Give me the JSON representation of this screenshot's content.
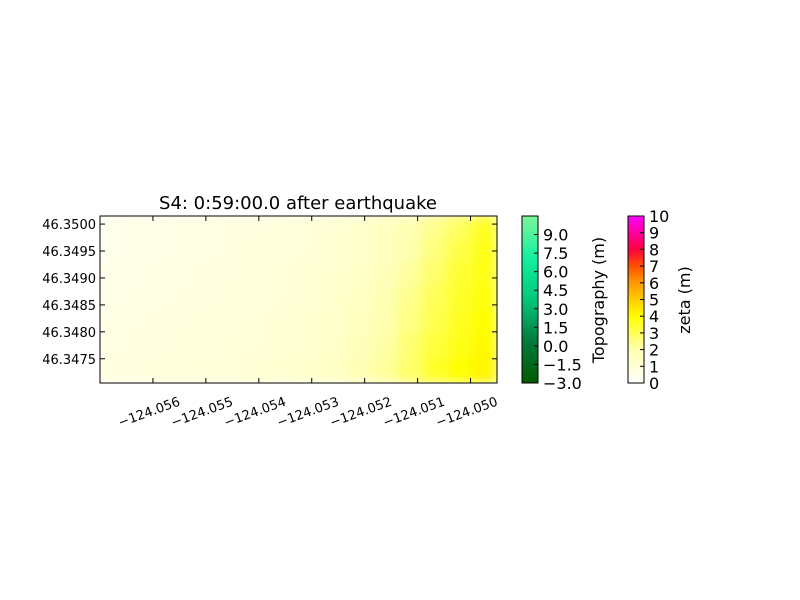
{
  "chart_data": {
    "type": "heatmap",
    "title": "S4: 0:59:00.0 after earthquake",
    "xlim": [
      -124.057,
      -124.0495
    ],
    "ylim": [
      46.34705,
      46.35015
    ],
    "x_ticks": [
      {
        "value": -124.056,
        "label": "−124.056"
      },
      {
        "value": -124.055,
        "label": "−124.055"
      },
      {
        "value": -124.054,
        "label": "−124.054"
      },
      {
        "value": -124.053,
        "label": "−124.053"
      },
      {
        "value": -124.052,
        "label": "−124.052"
      },
      {
        "value": -124.051,
        "label": "−124.051"
      },
      {
        "value": -124.05,
        "label": "−124.050"
      }
    ],
    "y_ticks": [
      {
        "value": 46.35,
        "label": "46.3500"
      },
      {
        "value": 46.3495,
        "label": "46.3495"
      },
      {
        "value": 46.349,
        "label": "46.3490"
      },
      {
        "value": 46.3485,
        "label": "46.3485"
      },
      {
        "value": 46.348,
        "label": "46.3480"
      },
      {
        "value": 46.3475,
        "label": "46.3475"
      }
    ],
    "zeta_grid": {
      "description_free": true,
      "rows": [
        [
          0.5,
          0.6,
          0.6,
          0.7,
          0.7,
          0.8,
          0.8,
          0.9,
          1.0,
          1.1,
          1.3,
          1.6,
          1.9,
          2.4,
          2.9,
          3.6
        ],
        [
          0.5,
          0.6,
          0.6,
          0.7,
          0.7,
          0.8,
          0.9,
          0.9,
          1.0,
          1.1,
          1.3,
          1.6,
          2.0,
          2.6,
          3.2,
          3.8
        ],
        [
          0.6,
          0.6,
          0.7,
          0.7,
          0.8,
          0.8,
          0.9,
          1.0,
          1.1,
          1.2,
          1.4,
          1.7,
          2.2,
          2.8,
          3.4,
          3.8
        ],
        [
          0.6,
          0.7,
          0.7,
          0.8,
          0.8,
          0.9,
          0.9,
          1.0,
          1.1,
          1.3,
          1.5,
          1.9,
          2.4,
          3.0,
          3.5,
          3.9
        ],
        [
          0.7,
          0.7,
          0.8,
          0.8,
          0.9,
          0.9,
          1.0,
          1.1,
          1.2,
          1.3,
          1.6,
          2.0,
          2.5,
          3.1,
          3.6,
          4.0
        ],
        [
          0.7,
          0.8,
          0.8,
          0.9,
          0.9,
          1.0,
          1.0,
          1.1,
          1.2,
          1.4,
          1.7,
          2.1,
          2.7,
          3.3,
          3.8,
          4.1
        ],
        [
          0.8,
          0.8,
          0.9,
          0.9,
          1.0,
          1.0,
          1.1,
          1.2,
          1.3,
          1.5,
          1.8,
          2.2,
          2.8,
          3.5,
          4.0,
          4.2
        ]
      ]
    },
    "colorbars": [
      {
        "label": "Topography (m)",
        "min": -3.0,
        "max": 10.5,
        "gradient": [
          "#005a00",
          "#007a3d",
          "#00c87a",
          "#14f0a0",
          "#7ef599"
        ],
        "ticks": [
          {
            "value": 9.0,
            "label": "9.0"
          },
          {
            "value": 7.5,
            "label": "7.5"
          },
          {
            "value": 6.0,
            "label": "6.0"
          },
          {
            "value": 4.5,
            "label": "4.5"
          },
          {
            "value": 3.0,
            "label": "3.0"
          },
          {
            "value": 1.5,
            "label": "1.5"
          },
          {
            "value": 0.0,
            "label": "0.0"
          },
          {
            "value": -1.5,
            "label": "−1.5"
          },
          {
            "value": -3.0,
            "label": "−3.0"
          }
        ]
      },
      {
        "label": "zeta (m)",
        "min": 0,
        "max": 10,
        "gradient_stops": [
          {
            "value": 0,
            "color": "#ffffff"
          },
          {
            "value": 2,
            "color": "#ffffb0"
          },
          {
            "value": 4,
            "color": "#ffff00"
          },
          {
            "value": 6,
            "color": "#ff9900"
          },
          {
            "value": 7,
            "color": "#ff5000"
          },
          {
            "value": 8,
            "color": "#ff0040"
          },
          {
            "value": 9,
            "color": "#ff00a0"
          },
          {
            "value": 10,
            "color": "#ff00ff"
          }
        ],
        "ticks": [
          {
            "value": 10,
            "label": "10"
          },
          {
            "value": 9,
            "label": "9"
          },
          {
            "value": 8,
            "label": "8"
          },
          {
            "value": 7,
            "label": "7"
          },
          {
            "value": 6,
            "label": "6"
          },
          {
            "value": 5,
            "label": "5"
          },
          {
            "value": 4,
            "label": "4"
          },
          {
            "value": 3,
            "label": "3"
          },
          {
            "value": 2,
            "label": "2"
          },
          {
            "value": 1,
            "label": "1"
          },
          {
            "value": 0,
            "label": "0"
          }
        ]
      }
    ]
  }
}
